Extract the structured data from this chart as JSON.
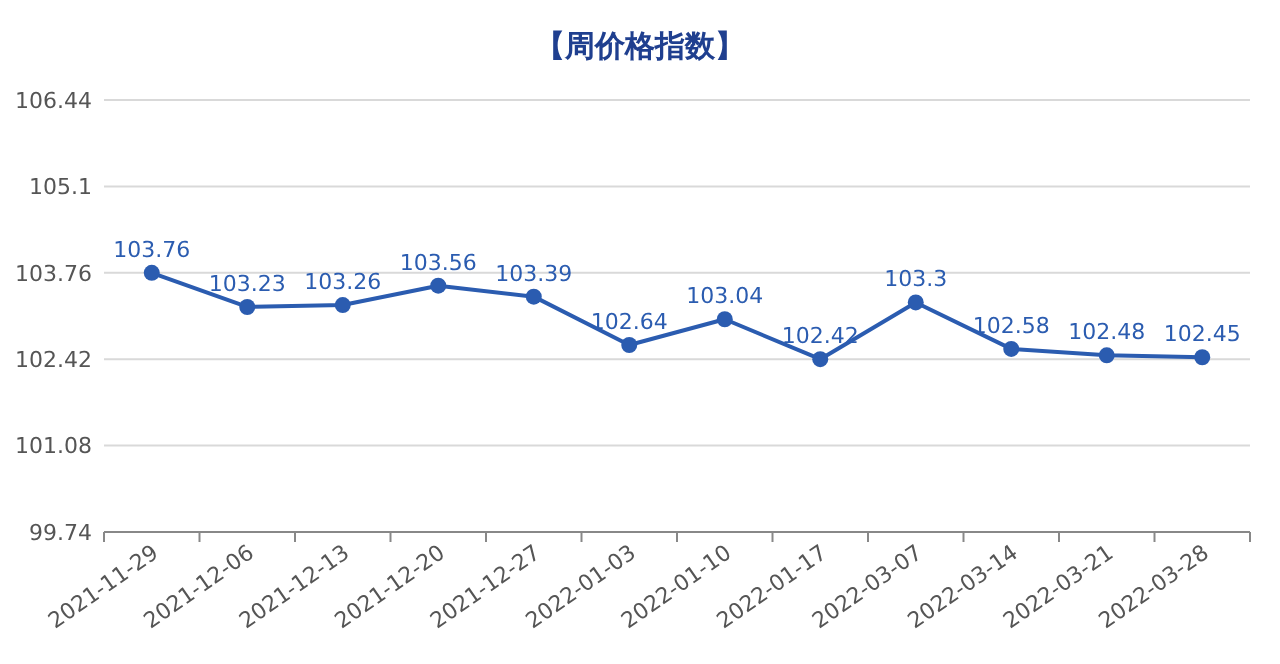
{
  "chart_data": {
    "type": "line",
    "title": "【周价格指数】",
    "categories": [
      "2021-11-29",
      "2021-12-06",
      "2021-12-13",
      "2021-12-20",
      "2021-12-27",
      "2022-01-03",
      "2022-01-10",
      "2022-01-17",
      "2022-03-07",
      "2022-03-14",
      "2022-03-21",
      "2022-03-28"
    ],
    "series": [
      {
        "color": "#2b5cb0",
        "values": [
          103.76,
          103.23,
          103.26,
          103.56,
          103.39,
          102.64,
          103.04,
          102.42,
          103.3,
          102.58,
          102.48,
          102.45
        ]
      }
    ],
    "ylim": [
      99.74,
      106.44
    ],
    "yticks": [
      99.74,
      101.08,
      102.42,
      103.76,
      105.1,
      106.44
    ],
    "grid": "y",
    "marker": "circle",
    "data_labels": true
  }
}
